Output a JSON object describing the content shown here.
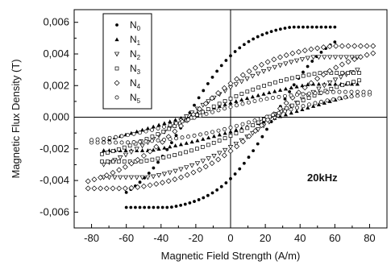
{
  "chart_data": {
    "type": "scatter",
    "xlabel": "Magnetic Field Strength (A/m)",
    "ylabel": "Magnetic Flux Density (T)",
    "xlim": [
      -90,
      90
    ],
    "ylim": [
      -0.007,
      0.0068
    ],
    "xticks": [
      -80,
      -60,
      -40,
      -20,
      0,
      20,
      40,
      60,
      80
    ],
    "yticks": [
      -0.006,
      -0.004,
      -0.002,
      0.0,
      0.002,
      0.004,
      0.006
    ],
    "ytick_labels": [
      "-0,006",
      "-0,004",
      "-0,002",
      "0,000",
      "0,002",
      "0,004",
      "0,006"
    ],
    "annotation": "20kHz",
    "legend_position": "top-left",
    "zero_lines": true,
    "series": [
      {
        "base": "N",
        "sub": "0",
        "marker": "filled-circle",
        "hmax": 60,
        "bsat": 0.0057,
        "hc": 25,
        "br": 0.0037,
        "note": "ellipse params"
      },
      {
        "base": "N",
        "sub": "1",
        "marker": "filled-triangle",
        "hmax": 73,
        "bsat": 0.0021,
        "hc": 27,
        "br": 0.0006
      },
      {
        "base": "N",
        "sub": "2",
        "marker": "open-triangle-down",
        "hmax": 73,
        "bsat": 0.0038,
        "hc": 26,
        "br": 0.0016
      },
      {
        "base": "N",
        "sub": "3",
        "marker": "open-square",
        "hmax": 74,
        "bsat": 0.0028,
        "hc": 22,
        "br": 0.001
      },
      {
        "base": "N",
        "sub": "4",
        "marker": "open-diamond",
        "hmax": 82,
        "bsat": 0.0045,
        "hc": 23,
        "br": 0.002
      },
      {
        "base": "N",
        "sub": "5",
        "marker": "open-circle",
        "hmax": 80,
        "bsat": 0.0016,
        "hc": 20,
        "br": 0.0006
      }
    ]
  }
}
